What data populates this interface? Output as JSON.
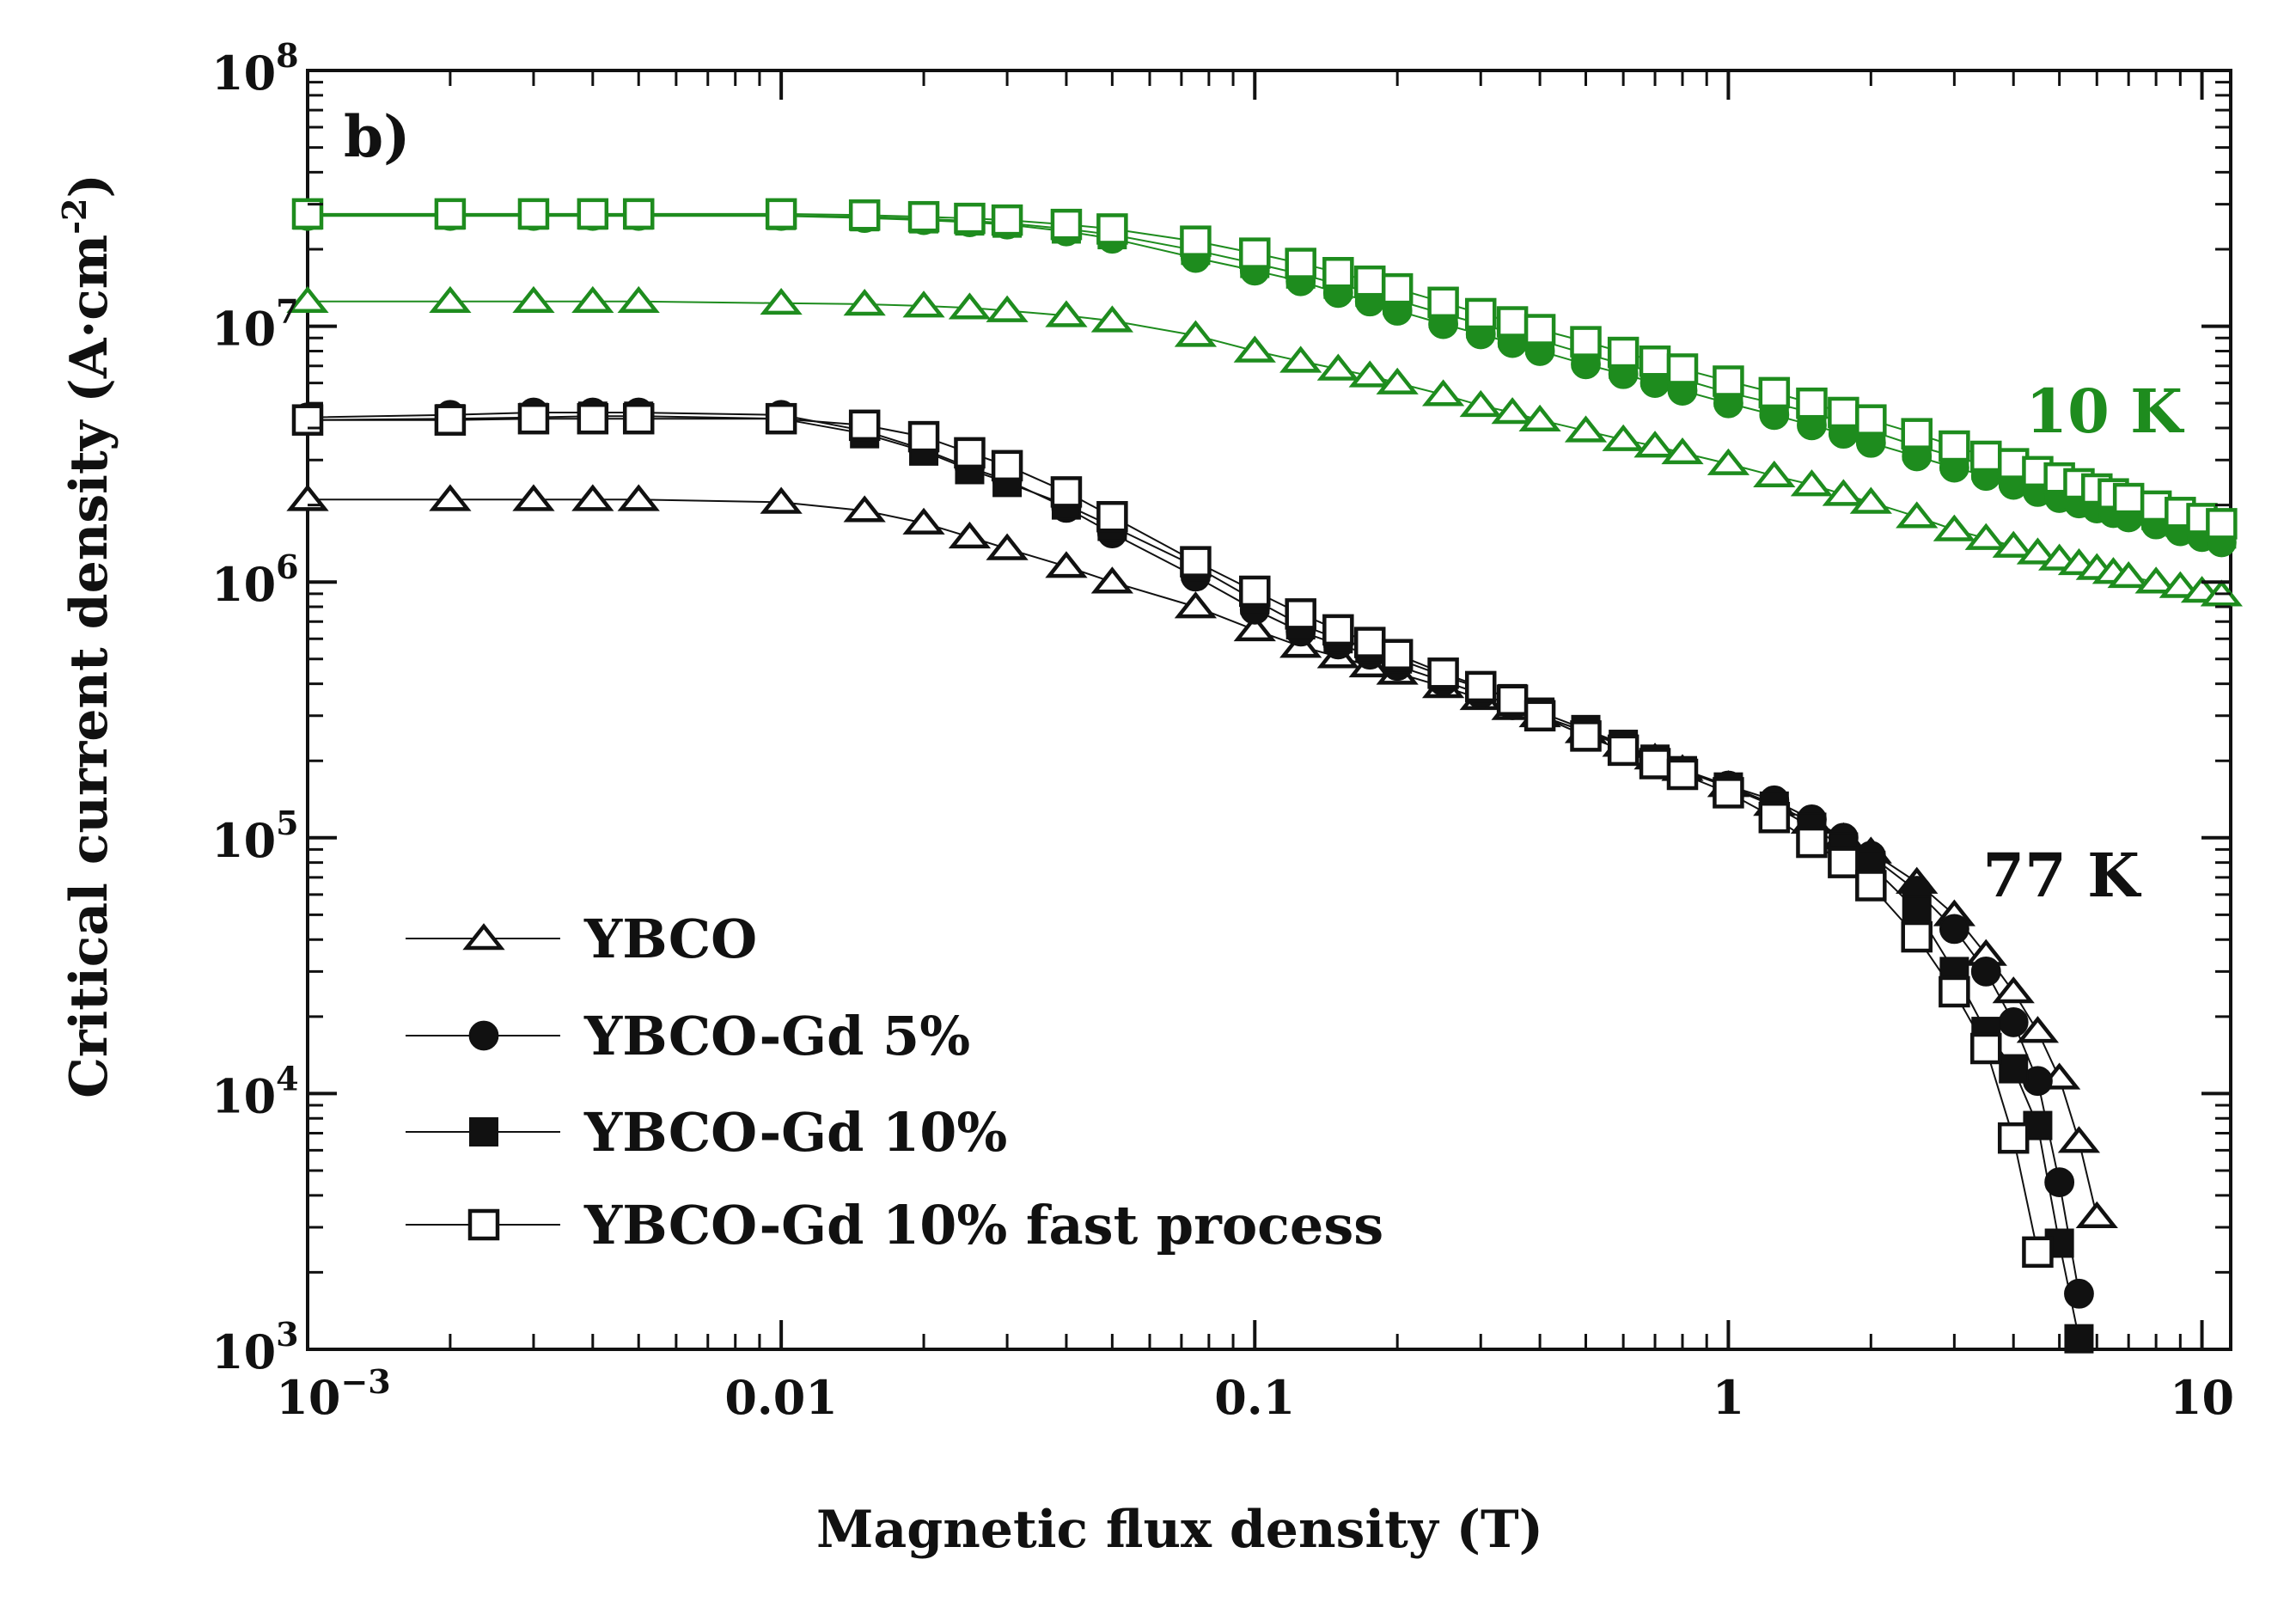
{
  "chart_data": {
    "type": "scatter",
    "panel_label": "b)",
    "xlabel": "Magnetic flux density (T)",
    "ylabel_main": "Critical current density (A·cm",
    "ylabel_sup": "-2",
    "ylabel_close": ")",
    "x_scale": "log",
    "y_scale": "log",
    "xlim": [
      0.001,
      11.5
    ],
    "ylim": [
      1000,
      100000000
    ],
    "x_ticks": [
      {
        "value": 0.001,
        "base": "10",
        "sup": "−3"
      },
      {
        "value": 0.01,
        "label": "0.01"
      },
      {
        "value": 0.1,
        "label": "0.1"
      },
      {
        "value": 1,
        "label": "1"
      },
      {
        "value": 10,
        "label": "10"
      }
    ],
    "y_ticks": [
      {
        "value": 1000,
        "base": "10",
        "sup": "3"
      },
      {
        "value": 10000,
        "base": "10",
        "sup": "4"
      },
      {
        "value": 100000,
        "base": "10",
        "sup": "5"
      },
      {
        "value": 1000000,
        "base": "10",
        "sup": "6"
      },
      {
        "value": 10000000,
        "base": "10",
        "sup": "7"
      },
      {
        "value": 100000000,
        "base": "10",
        "sup": "8"
      }
    ],
    "annotations": [
      {
        "text": "10 K",
        "color": "#1e8c1e",
        "position": "upper-right"
      },
      {
        "text": "77 K",
        "color": "#111111",
        "position": "lower-right"
      }
    ],
    "legend": {
      "position": "lower-left",
      "entries": [
        {
          "label": "YBCO",
          "marker": "triangle-open"
        },
        {
          "label": "YBCO-Gd 5%",
          "marker": "circle-filled"
        },
        {
          "label": "YBCO-Gd 10%",
          "marker": "square-filled"
        },
        {
          "label": "YBCO-Gd 10% fast process",
          "marker": "square-open"
        }
      ]
    },
    "colors": {
      "10K": "#1e8c1e",
      "77K": "#111111"
    },
    "series": [
      {
        "name": "YBCO",
        "temperature": "10 K",
        "marker": "triangle-open",
        "x": [
          0.001,
          0.002,
          0.003,
          0.004,
          0.005,
          0.01,
          0.015,
          0.02,
          0.025,
          0.03,
          0.04,
          0.05,
          0.075,
          0.1,
          0.125,
          0.15,
          0.175,
          0.2,
          0.25,
          0.3,
          0.35,
          0.4,
          0.5,
          0.6,
          0.7,
          0.8,
          1,
          1.25,
          1.5,
          1.75,
          2,
          2.5,
          3,
          3.5,
          4,
          4.5,
          5,
          5.5,
          6,
          6.5,
          7,
          8,
          9,
          10,
          11
        ],
        "y": [
          12500000,
          12500000,
          12500000,
          12500000,
          12500000,
          12300000,
          12200000,
          12000000,
          11800000,
          11500000,
          11000000,
          10500000,
          9200000,
          8000000,
          7300000,
          6800000,
          6400000,
          6000000,
          5400000,
          4900000,
          4600000,
          4300000,
          3900000,
          3600000,
          3400000,
          3200000,
          2900000,
          2600000,
          2400000,
          2200000,
          2050000,
          1800000,
          1600000,
          1480000,
          1380000,
          1300000,
          1230000,
          1180000,
          1130000,
          1090000,
          1050000,
          1000000,
          960000,
          920000,
          890000
        ]
      },
      {
        "name": "YBCO-Gd 5%",
        "temperature": "10 K",
        "marker": "circle-filled",
        "x": [
          0.001,
          0.002,
          0.003,
          0.004,
          0.005,
          0.01,
          0.015,
          0.02,
          0.025,
          0.03,
          0.04,
          0.05,
          0.075,
          0.1,
          0.125,
          0.15,
          0.175,
          0.2,
          0.25,
          0.3,
          0.35,
          0.4,
          0.5,
          0.6,
          0.7,
          0.8,
          1,
          1.25,
          1.5,
          1.75,
          2,
          2.5,
          3,
          3.5,
          4,
          4.5,
          5,
          5.5,
          6,
          6.5,
          7,
          8,
          9,
          10,
          11
        ],
        "y": [
          27000000,
          27000000,
          27000000,
          27000000,
          27000000,
          27000000,
          26500000,
          26000000,
          25500000,
          25000000,
          23500000,
          22000000,
          18500000,
          16500000,
          15000000,
          13500000,
          12500000,
          11500000,
          10200000,
          9300000,
          8600000,
          8000000,
          7100000,
          6500000,
          6000000,
          5600000,
          5000000,
          4500000,
          4100000,
          3800000,
          3500000,
          3100000,
          2800000,
          2600000,
          2400000,
          2250000,
          2130000,
          2030000,
          1940000,
          1860000,
          1790000,
          1680000,
          1580000,
          1500000,
          1430000
        ]
      },
      {
        "name": "YBCO-Gd 10%",
        "temperature": "10 K",
        "marker": "square-filled",
        "x": [
          0.001,
          0.002,
          0.003,
          0.004,
          0.005,
          0.01,
          0.015,
          0.02,
          0.025,
          0.03,
          0.04,
          0.05,
          0.075,
          0.1,
          0.125,
          0.15,
          0.175,
          0.2,
          0.25,
          0.3,
          0.35,
          0.4,
          0.5,
          0.6,
          0.7,
          0.8,
          1,
          1.25,
          1.5,
          1.75,
          2,
          2.5,
          3,
          3.5,
          4,
          4.5,
          5,
          5.5,
          6,
          6.5,
          7,
          8,
          9,
          10,
          11
        ],
        "y": [
          27200000,
          27200000,
          27200000,
          27200000,
          27200000,
          27100000,
          26800000,
          26300000,
          25800000,
          25300000,
          24000000,
          22800000,
          19800000,
          17600000,
          16000000,
          14600000,
          13600000,
          12600000,
          11200000,
          10200000,
          9400000,
          8800000,
          7800000,
          7100000,
          6600000,
          6200000,
          5500000,
          5000000,
          4600000,
          4200000,
          3900000,
          3400000,
          3100000,
          2850000,
          2650000,
          2480000,
          2340000,
          2220000,
          2120000,
          2030000,
          1950000,
          1820000,
          1710000,
          1620000,
          1540000
        ]
      },
      {
        "name": "YBCO-Gd 10% fast process",
        "temperature": "10 K",
        "marker": "square-open",
        "x": [
          0.001,
          0.002,
          0.003,
          0.004,
          0.005,
          0.01,
          0.015,
          0.02,
          0.025,
          0.03,
          0.04,
          0.05,
          0.075,
          0.1,
          0.125,
          0.15,
          0.175,
          0.2,
          0.25,
          0.3,
          0.35,
          0.4,
          0.5,
          0.6,
          0.7,
          0.8,
          1,
          1.25,
          1.5,
          1.75,
          2,
          2.5,
          3,
          3.5,
          4,
          4.5,
          5,
          5.5,
          6,
          6.5,
          7,
          8,
          9,
          10,
          11
        ],
        "y": [
          27500000,
          27500000,
          27500000,
          27500000,
          27500000,
          27500000,
          27200000,
          26800000,
          26400000,
          26000000,
          25000000,
          24000000,
          21500000,
          19300000,
          17600000,
          16200000,
          15000000,
          14000000,
          12400000,
          11200000,
          10400000,
          9700000,
          8700000,
          7900000,
          7300000,
          6800000,
          6100000,
          5500000,
          5000000,
          4600000,
          4300000,
          3800000,
          3400000,
          3100000,
          2900000,
          2700000,
          2550000,
          2420000,
          2310000,
          2210000,
          2120000,
          1980000,
          1870000,
          1770000,
          1690000
        ]
      },
      {
        "name": "YBCO",
        "temperature": "77 K",
        "marker": "triangle-open",
        "x": [
          0.001,
          0.002,
          0.003,
          0.004,
          0.005,
          0.01,
          0.015,
          0.02,
          0.025,
          0.03,
          0.04,
          0.05,
          0.075,
          0.1,
          0.125,
          0.15,
          0.175,
          0.2,
          0.25,
          0.3,
          0.35,
          0.4,
          0.5,
          0.6,
          0.7,
          0.8,
          1,
          1.25,
          1.5,
          1.75,
          2,
          2.5,
          3,
          3.5,
          4,
          4.5,
          5,
          5.5,
          6
        ],
        "y": [
          2100000,
          2100000,
          2100000,
          2100000,
          2100000,
          2050000,
          1900000,
          1700000,
          1500000,
          1350000,
          1150000,
          1000000,
          800000,
          650000,
          560000,
          510000,
          470000,
          440000,
          390000,
          350000,
          320000,
          300000,
          260000,
          230000,
          205000,
          185000,
          160000,
          135000,
          115000,
          100000,
          88000,
          67000,
          50000,
          35000,
          25000,
          17500,
          11500,
          6500,
          3300
        ]
      },
      {
        "name": "YBCO-Gd 5%",
        "temperature": "77 K",
        "marker": "circle-filled",
        "x": [
          0.001,
          0.002,
          0.003,
          0.004,
          0.005,
          0.01,
          0.015,
          0.02,
          0.025,
          0.03,
          0.04,
          0.05,
          0.075,
          0.1,
          0.125,
          0.15,
          0.175,
          0.2,
          0.25,
          0.3,
          0.35,
          0.4,
          0.5,
          0.6,
          0.7,
          0.8,
          1,
          1.25,
          1.5,
          1.75,
          2,
          2.5,
          3,
          3.5,
          4,
          4.5,
          5,
          5.5
        ],
        "y": [
          4400000,
          4500000,
          4600000,
          4600000,
          4600000,
          4500000,
          3900000,
          3300000,
          2800000,
          2500000,
          1950000,
          1550000,
          1050000,
          780000,
          640000,
          570000,
          520000,
          470000,
          410000,
          365000,
          330000,
          300000,
          260000,
          228000,
          200000,
          182000,
          160000,
          140000,
          118000,
          100000,
          85000,
          62000,
          44000,
          30000,
          19000,
          11200,
          4500,
          1650
        ]
      },
      {
        "name": "YBCO-Gd 10%",
        "temperature": "77 K",
        "marker": "square-filled",
        "x": [
          0.001,
          0.002,
          0.003,
          0.004,
          0.005,
          0.01,
          0.015,
          0.02,
          0.025,
          0.03,
          0.04,
          0.05,
          0.075,
          0.1,
          0.125,
          0.15,
          0.175,
          0.2,
          0.25,
          0.3,
          0.35,
          0.4,
          0.5,
          0.6,
          0.7,
          0.8,
          1,
          1.25,
          1.5,
          1.75,
          2,
          2.5,
          3,
          3.5,
          4,
          4.5,
          5,
          5.5
        ],
        "y": [
          4300000,
          4350000,
          4400000,
          4450000,
          4450000,
          4350000,
          3800000,
          3250000,
          2750000,
          2450000,
          2000000,
          1650000,
          1150000,
          850000,
          680000,
          600000,
          550000,
          500000,
          430000,
          385000,
          350000,
          310000,
          265000,
          232000,
          203000,
          183000,
          158000,
          133000,
          110000,
          92000,
          78000,
          52000,
          30000,
          17500,
          12500,
          7500,
          2600,
          1100
        ]
      },
      {
        "name": "YBCO-Gd 10% fast process",
        "temperature": "77 K",
        "marker": "square-open",
        "x": [
          0.001,
          0.002,
          0.003,
          0.004,
          0.005,
          0.01,
          0.015,
          0.02,
          0.025,
          0.03,
          0.04,
          0.05,
          0.075,
          0.1,
          0.125,
          0.15,
          0.175,
          0.2,
          0.25,
          0.3,
          0.35,
          0.4,
          0.5,
          0.6,
          0.7,
          0.8,
          1,
          1.25,
          1.5,
          1.75,
          2,
          2.5,
          3,
          3.5,
          4,
          4.5
        ],
        "y": [
          4300000,
          4300000,
          4350000,
          4350000,
          4350000,
          4350000,
          4100000,
          3700000,
          3200000,
          2850000,
          2250000,
          1800000,
          1200000,
          920000,
          750000,
          650000,
          580000,
          520000,
          440000,
          390000,
          345000,
          300000,
          250000,
          220000,
          195000,
          177000,
          150000,
          120000,
          96000,
          80000,
          65000,
          41000,
          25000,
          15000,
          6700,
          2400
        ]
      }
    ]
  }
}
